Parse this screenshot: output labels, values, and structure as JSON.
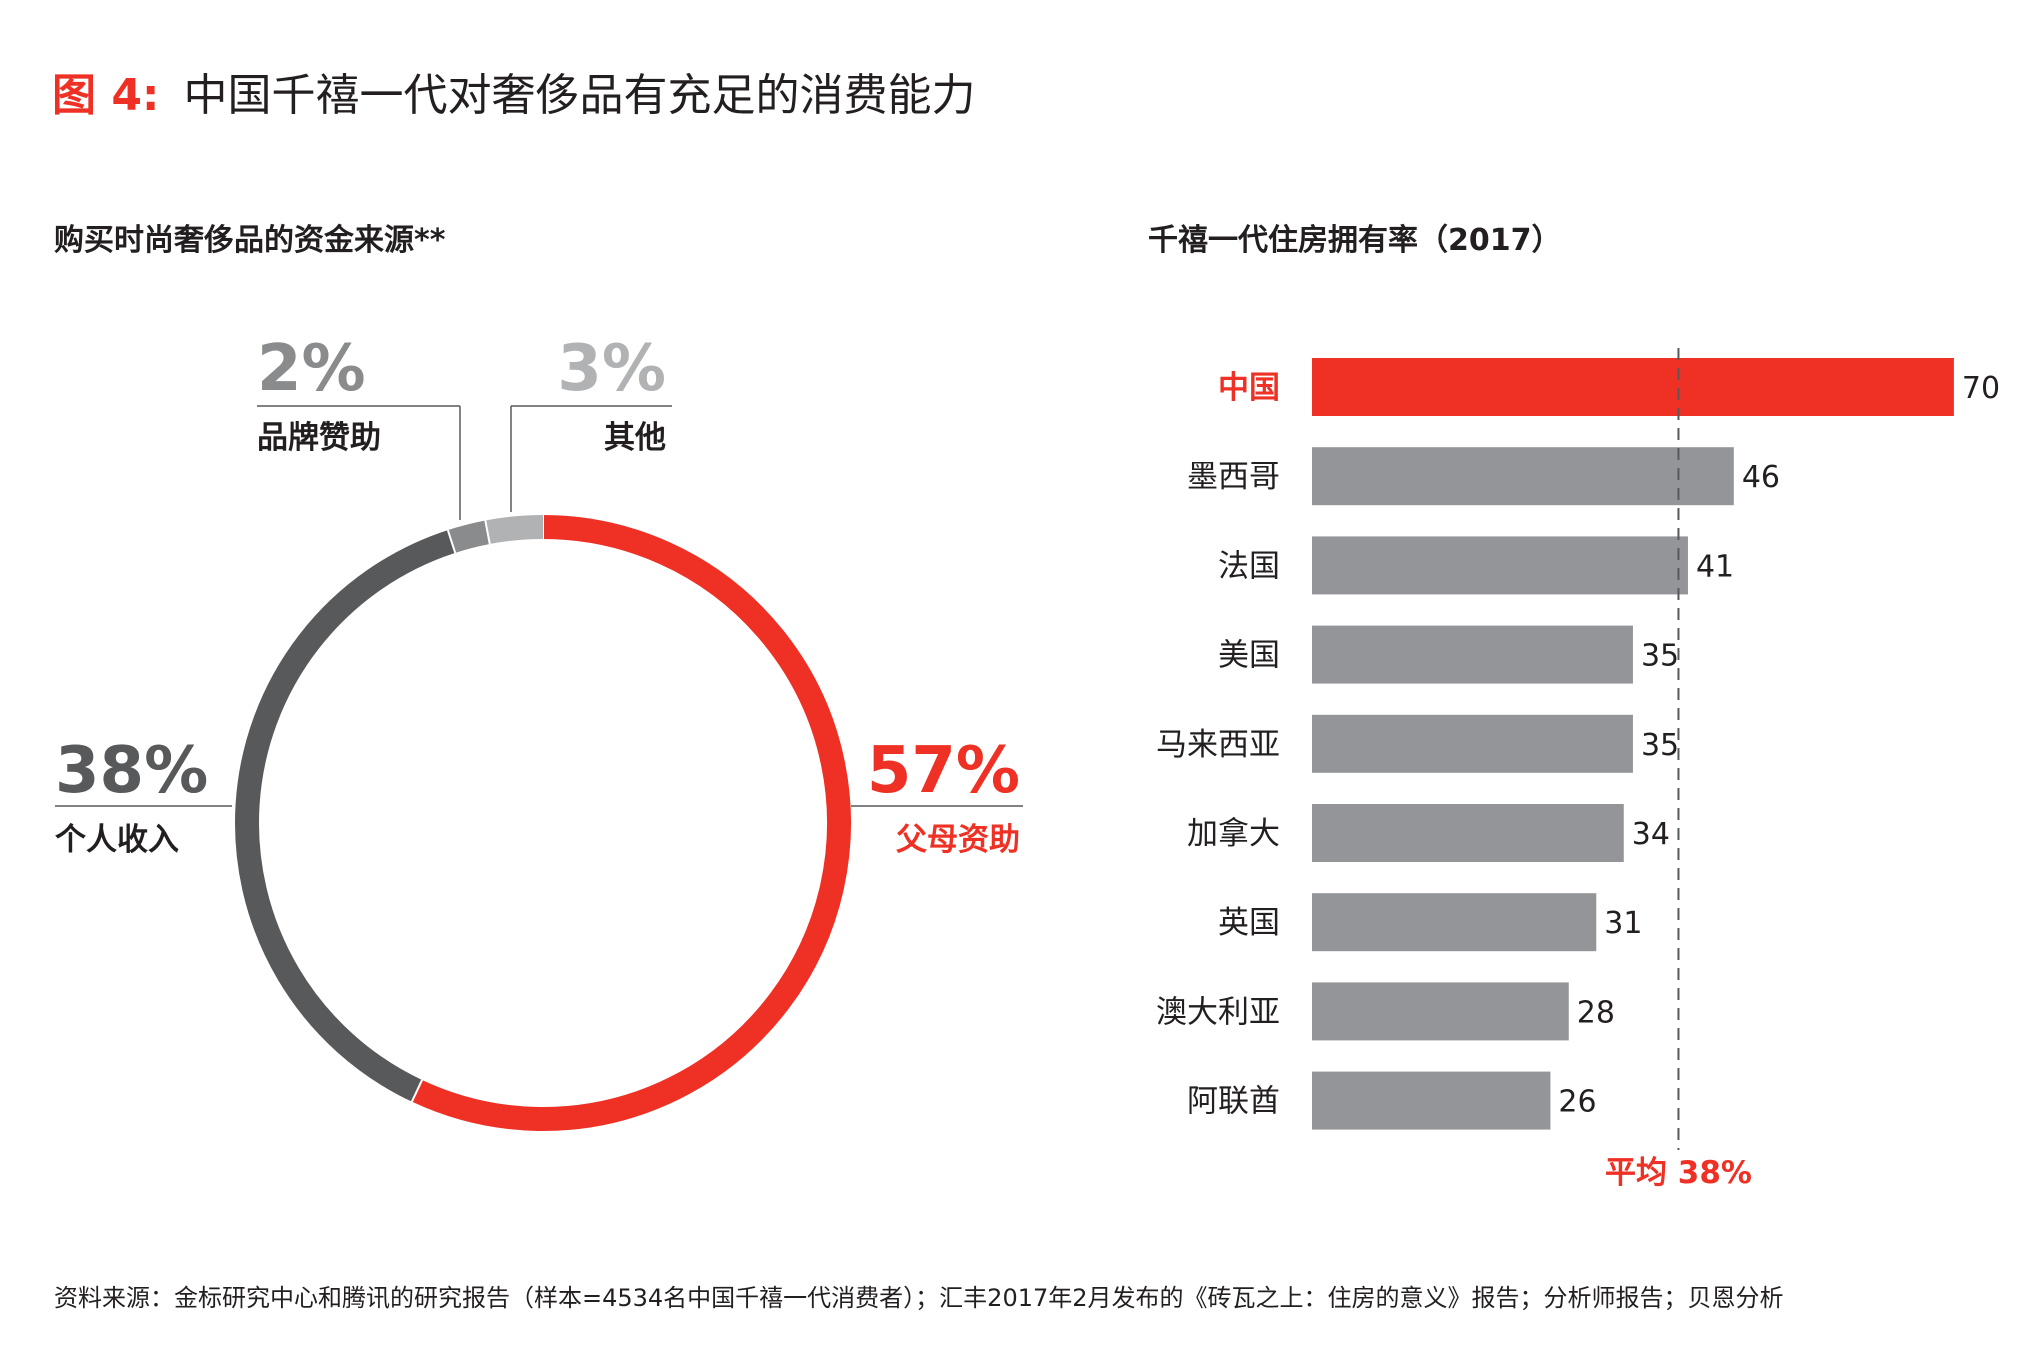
{
  "title": {
    "prefix": "图 4:",
    "text": "中国千禧一代对奢侈品有充足的消费能力"
  },
  "footer": "资料来源：金标研究中心和腾讯的研究报告（样本=4534名中国千禧一代消费者）；汇丰2017年2月发布的《砖瓦之上：住房的意义》报告；分析师报告；贝恩分析",
  "colors": {
    "red": "#EE3124",
    "dark": "#58595B",
    "mid": "#8A8B8D",
    "light": "#B1B2B4",
    "bar": "#939598"
  },
  "chart_data": [
    {
      "type": "pie",
      "title": "购买时尚奢侈品的资金来源**",
      "slices": [
        {
          "label": "父母资助",
          "value": 57,
          "display": "57%",
          "color": "#EE3124"
        },
        {
          "label": "个人收入",
          "value": 38,
          "display": "38%",
          "color": "#58595B"
        },
        {
          "label": "品牌赞助",
          "value": 2,
          "display": "2%",
          "color": "#8A8B8D"
        },
        {
          "label": "其他",
          "value": 3,
          "display": "3%",
          "color": "#B1B2B4"
        }
      ]
    },
    {
      "type": "bar",
      "orientation": "horizontal",
      "title": "千禧一代住房拥有率（2017）",
      "categories": [
        "中国",
        "墨西哥",
        "法国",
        "美国",
        "马来西亚",
        "加拿大",
        "英国",
        "澳大利亚",
        "阿联酋"
      ],
      "values": [
        70,
        46,
        41,
        35,
        35,
        34,
        31,
        28,
        26
      ],
      "highlight": "中国",
      "reference_line": {
        "value": 38,
        "label": "平均 38%"
      }
    }
  ]
}
